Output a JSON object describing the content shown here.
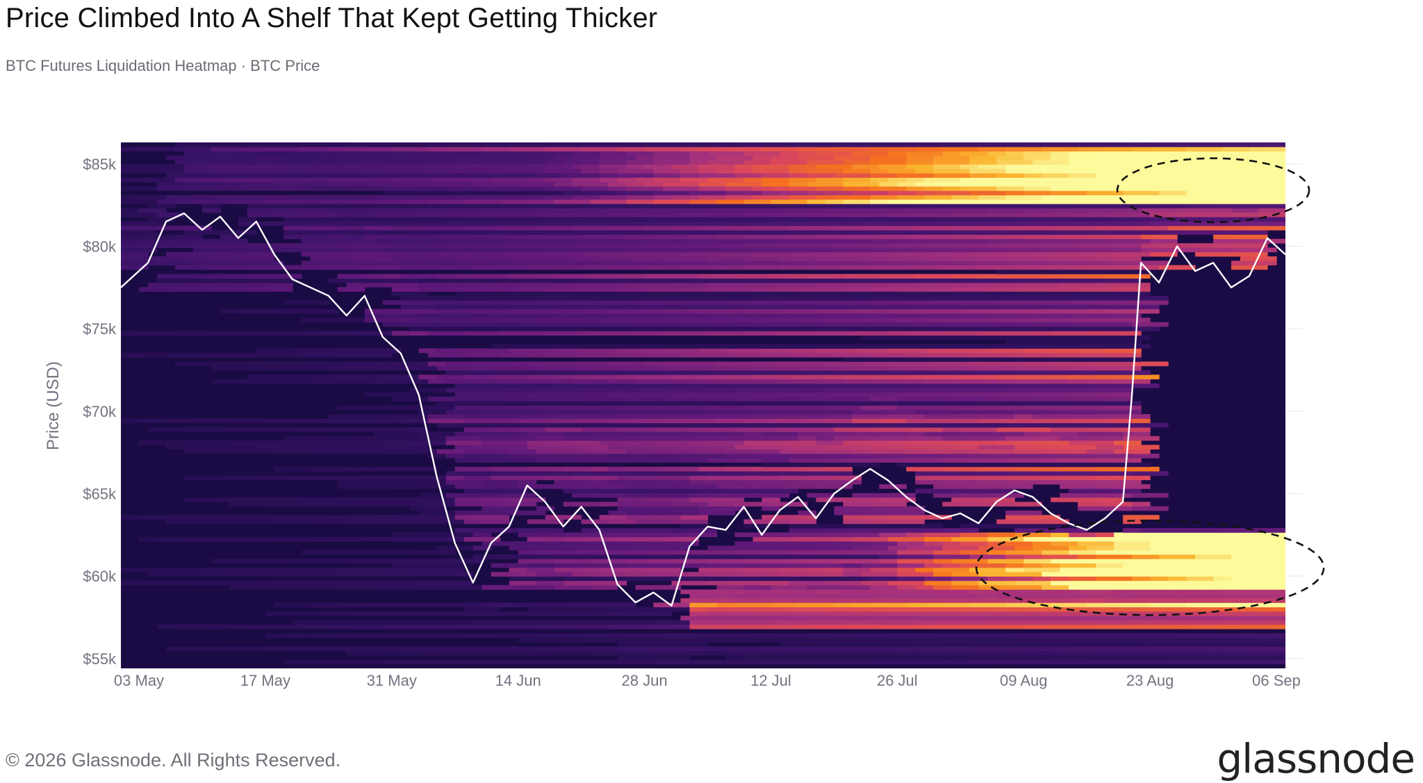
{
  "header": {
    "title": "Price Climbed Into A Shelf That Kept Getting Thicker",
    "subtitle": "BTC Futures Liquidation Heatmap · BTC Price"
  },
  "footer": {
    "copyright": "© 2026 Glassnode. All Rights Reserved.",
    "brand": "glassnode"
  },
  "colors": {
    "background": "#1b0b45",
    "heat_low": "#3a1368",
    "heat_mid": "#a2307d",
    "heat_high": "#f5711f",
    "heat_max": "#fcfa9a",
    "price_line": "#ffffff",
    "annotation": "#111111"
  },
  "chart_data": {
    "type": "heatmap",
    "overlay_type": "line",
    "title": "Price Climbed Into A Shelf That Kept Getting Thicker",
    "subtitle": "BTC Futures Liquidation Heatmap · BTC Price",
    "ylabel": "Price (USD)",
    "ylim": [
      54400,
      86300
    ],
    "xlim": [
      "2021-05-01",
      "2021-09-07"
    ],
    "x_tick_labels": [
      "03 May",
      "17 May",
      "31 May",
      "14 Jun",
      "28 Jun",
      "12 Jul",
      "26 Jul",
      "09 Aug",
      "23 Aug",
      "06 Sep"
    ],
    "x_tick_dates": [
      "2021-05-03",
      "2021-05-17",
      "2021-05-31",
      "2021-06-14",
      "2021-06-28",
      "2021-07-12",
      "2021-07-26",
      "2021-08-09",
      "2021-08-23",
      "2021-09-06"
    ],
    "y_ticks": [
      55000,
      60000,
      65000,
      70000,
      75000,
      80000,
      85000
    ],
    "y_tick_labels": [
      "$55k",
      "$60k",
      "$65k",
      "$70k",
      "$75k",
      "$80k",
      "$85k"
    ],
    "price_series": {
      "x": [
        "2021-05-01",
        "2021-05-04",
        "2021-05-06",
        "2021-05-08",
        "2021-05-10",
        "2021-05-12",
        "2021-05-14",
        "2021-05-16",
        "2021-05-18",
        "2021-05-20",
        "2021-05-22",
        "2021-05-24",
        "2021-05-26",
        "2021-05-28",
        "2021-05-30",
        "2021-06-01",
        "2021-06-03",
        "2021-06-05",
        "2021-06-07",
        "2021-06-09",
        "2021-06-11",
        "2021-06-13",
        "2021-06-15",
        "2021-06-17",
        "2021-06-19",
        "2021-06-21",
        "2021-06-23",
        "2021-06-25",
        "2021-06-27",
        "2021-06-29",
        "2021-07-01",
        "2021-07-03",
        "2021-07-05",
        "2021-07-07",
        "2021-07-09",
        "2021-07-11",
        "2021-07-13",
        "2021-07-15",
        "2021-07-17",
        "2021-07-19",
        "2021-07-21",
        "2021-07-23",
        "2021-07-25",
        "2021-07-27",
        "2021-07-29",
        "2021-07-31",
        "2021-08-02",
        "2021-08-04",
        "2021-08-06",
        "2021-08-08",
        "2021-08-10",
        "2021-08-12",
        "2021-08-14",
        "2021-08-16",
        "2021-08-18",
        "2021-08-20",
        "2021-08-21",
        "2021-08-22",
        "2021-08-24",
        "2021-08-26",
        "2021-08-28",
        "2021-08-30",
        "2021-09-01",
        "2021-09-03",
        "2021-09-05",
        "2021-09-07"
      ],
      "y": [
        77500,
        79000,
        81500,
        82000,
        81000,
        81800,
        80500,
        81500,
        79500,
        78000,
        77500,
        77000,
        75800,
        77000,
        74500,
        73500,
        71000,
        66000,
        62000,
        59600,
        62000,
        63000,
        65500,
        64500,
        63000,
        64200,
        62800,
        59500,
        58400,
        59000,
        58200,
        61800,
        63000,
        62800,
        64200,
        62500,
        64000,
        64800,
        63500,
        65000,
        65800,
        66500,
        65800,
        64800,
        64000,
        63500,
        63800,
        63200,
        64500,
        65200,
        64800,
        63800,
        63200,
        62800,
        63500,
        64500,
        71000,
        79000,
        77800,
        80000,
        78500,
        79000,
        77500,
        78200,
        80500,
        79500
      ]
    },
    "annotations": [
      {
        "shape": "ellipse",
        "center_x": "2021-08-30",
        "center_y": 83400,
        "note": "top-right shelf"
      },
      {
        "shape": "ellipse",
        "center_x": "2021-08-23",
        "center_y": 60500,
        "note": "bottom shelf"
      }
    ]
  }
}
